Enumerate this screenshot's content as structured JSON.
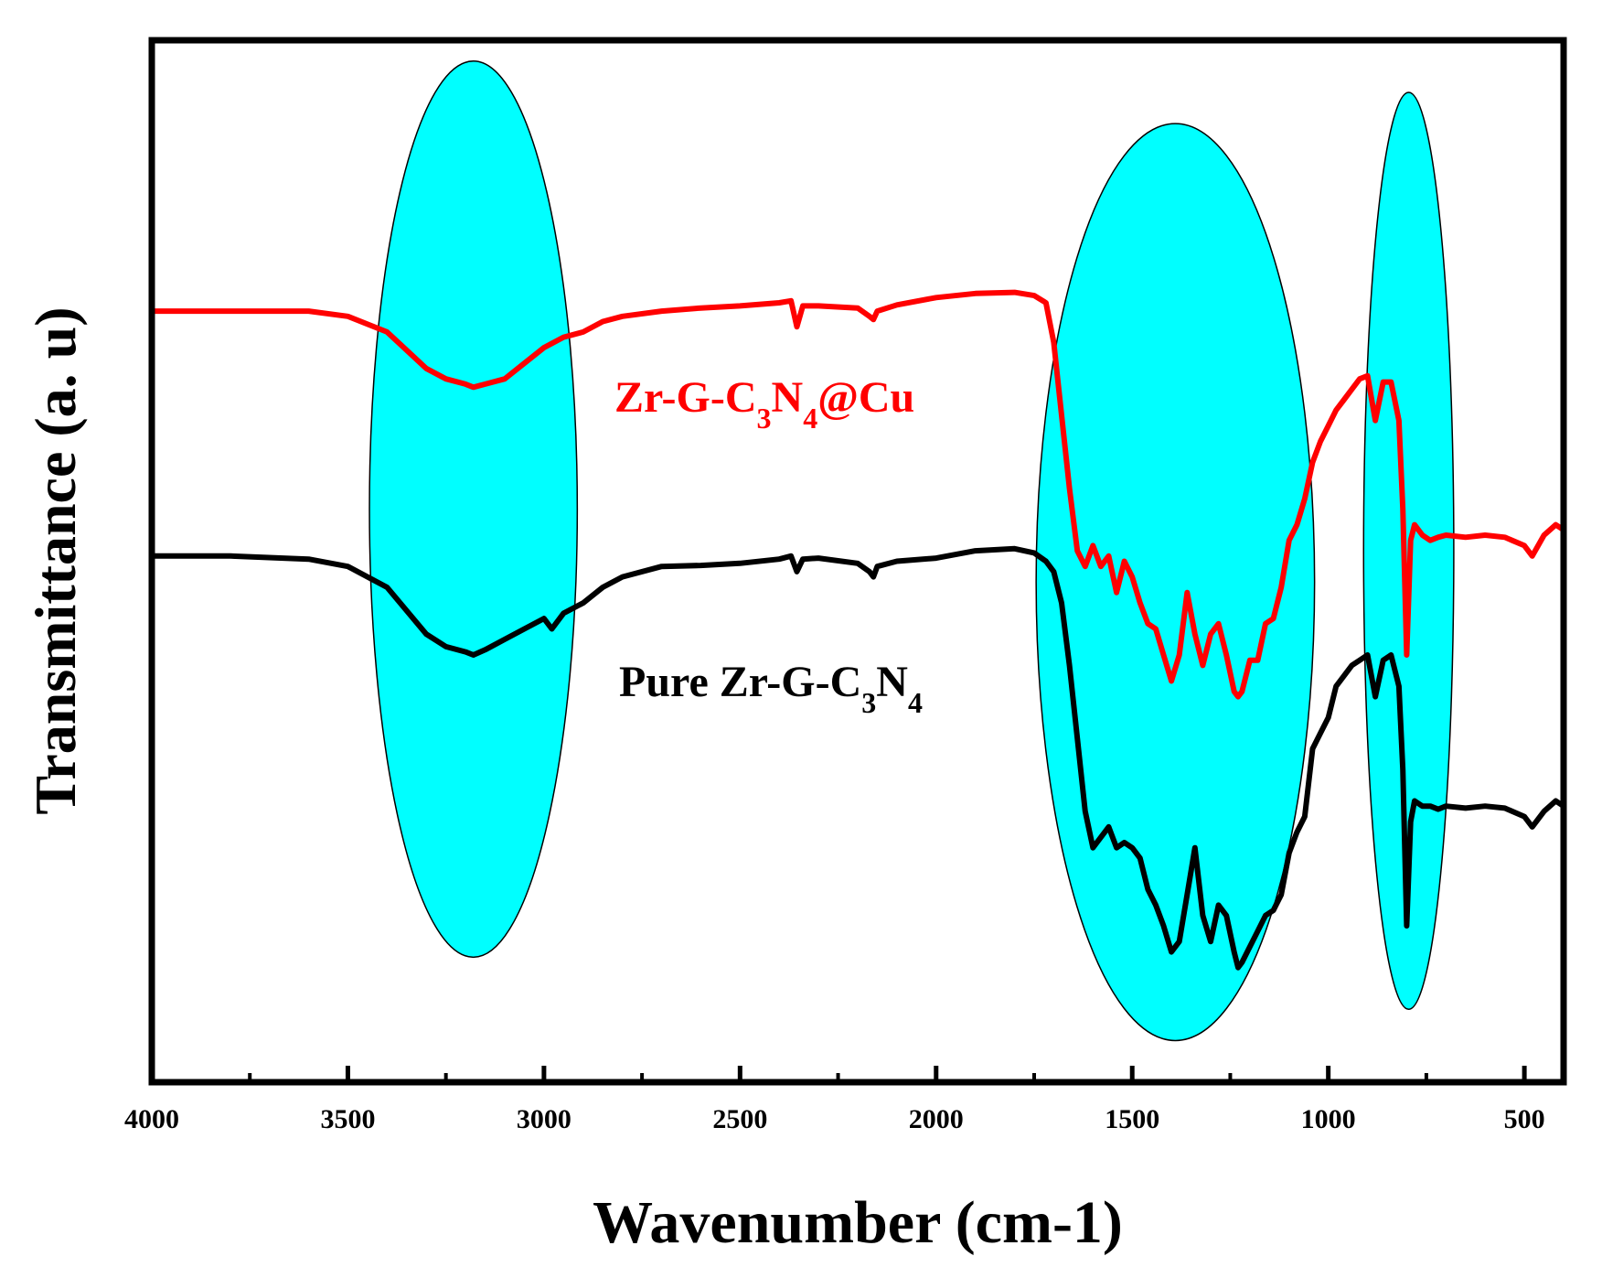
{
  "chart_data": {
    "type": "line",
    "title": "",
    "xlabel": "Wavenumber (cm-1)",
    "ylabel": "Transmittance (a. u)",
    "xlim": [
      4000,
      400
    ],
    "ylim": [
      0,
      100
    ],
    "x_ticks": [
      4000,
      3500,
      3000,
      2500,
      2000,
      1500,
      1000,
      500
    ],
    "grid": false,
    "legend": "inline",
    "highlight_regions": [
      {
        "center": 3180,
        "half_width": 265,
        "y_center": 55,
        "y_half": 43
      },
      {
        "center": 1390,
        "half_width": 355,
        "y_center": 48,
        "y_half": 44
      },
      {
        "center": 795,
        "half_width": 115,
        "y_center": 51,
        "y_half": 44
      }
    ],
    "series": [
      {
        "name": "Zr-G-C3N4@Cu",
        "label_main": "Zr-G-C",
        "label_sub1": "3",
        "label_mid": "N",
        "label_sub2": "4",
        "label_end": "@Cu",
        "color": "#ff0000",
        "x": [
          4000,
          3800,
          3600,
          3500,
          3400,
          3300,
          3250,
          3200,
          3180,
          3150,
          3100,
          3050,
          3000,
          2950,
          2900,
          2850,
          2800,
          2700,
          2600,
          2500,
          2400,
          2370,
          2355,
          2340,
          2300,
          2200,
          2170,
          2160,
          2150,
          2100,
          2000,
          1900,
          1800,
          1750,
          1720,
          1700,
          1680,
          1660,
          1640,
          1620,
          1600,
          1580,
          1560,
          1540,
          1520,
          1500,
          1480,
          1460,
          1440,
          1420,
          1400,
          1380,
          1360,
          1340,
          1320,
          1300,
          1280,
          1260,
          1240,
          1230,
          1220,
          1200,
          1180,
          1160,
          1140,
          1120,
          1100,
          1080,
          1060,
          1040,
          1020,
          1000,
          980,
          960,
          940,
          920,
          900,
          880,
          860,
          840,
          820,
          810,
          800,
          790,
          780,
          760,
          740,
          720,
          700,
          650,
          600,
          550,
          500,
          480,
          450,
          420,
          400
        ],
        "y": [
          74,
          74,
          74,
          73.5,
          72,
          68.5,
          67.5,
          67,
          66.7,
          67,
          67.5,
          69,
          70.5,
          71.5,
          72,
          73,
          73.5,
          74,
          74.3,
          74.5,
          74.8,
          75,
          72.5,
          74.5,
          74.5,
          74.3,
          73.5,
          73.2,
          74,
          74.6,
          75.3,
          75.7,
          75.8,
          75.5,
          74.8,
          71,
          64,
          57,
          51,
          49.5,
          51.5,
          49.5,
          50.5,
          47,
          50,
          48.5,
          46,
          44,
          43.5,
          41,
          38.5,
          41,
          47,
          43,
          40,
          43,
          44,
          41,
          37.5,
          37,
          37.5,
          40.5,
          40.5,
          44,
          44.5,
          47.5,
          52,
          53.5,
          56,
          59.5,
          61.5,
          63,
          64.5,
          65.5,
          66.5,
          67.5,
          67.8,
          63.5,
          67.2,
          67.2,
          63.5,
          55,
          41,
          52,
          53.5,
          52.5,
          52,
          52.3,
          52.5,
          52.3,
          52.5,
          52.3,
          51.5,
          50.5,
          52.5,
          53.5,
          53
        ]
      },
      {
        "name": "Pure Zr-G-C3N4",
        "label_main": "Pure Zr-G-C",
        "label_sub1": "3",
        "label_mid": "N",
        "label_sub2": "4",
        "label_end": "",
        "color": "#000000",
        "x": [
          4000,
          3800,
          3600,
          3500,
          3400,
          3300,
          3250,
          3200,
          3180,
          3150,
          3100,
          3050,
          3000,
          2980,
          2950,
          2900,
          2850,
          2800,
          2700,
          2600,
          2500,
          2400,
          2370,
          2355,
          2340,
          2300,
          2200,
          2170,
          2160,
          2150,
          2100,
          2000,
          1900,
          1800,
          1750,
          1720,
          1700,
          1680,
          1660,
          1640,
          1620,
          1600,
          1580,
          1560,
          1540,
          1520,
          1500,
          1480,
          1460,
          1440,
          1420,
          1400,
          1380,
          1360,
          1340,
          1320,
          1300,
          1280,
          1260,
          1240,
          1230,
          1220,
          1200,
          1180,
          1160,
          1140,
          1120,
          1100,
          1080,
          1060,
          1040,
          1020,
          1000,
          980,
          960,
          940,
          920,
          900,
          880,
          860,
          840,
          820,
          810,
          800,
          790,
          780,
          760,
          740,
          720,
          700,
          650,
          600,
          550,
          500,
          480,
          450,
          420,
          400
        ],
        "y": [
          50.5,
          50.5,
          50.2,
          49.5,
          47.5,
          43,
          41.8,
          41.3,
          41,
          41.5,
          42.5,
          43.5,
          44.5,
          43.5,
          45,
          46,
          47.5,
          48.5,
          49.5,
          49.6,
          49.8,
          50.2,
          50.5,
          49,
          50.2,
          50.3,
          49.8,
          49,
          48.5,
          49.5,
          50,
          50.3,
          51,
          51.2,
          50.8,
          50,
          49,
          46,
          40,
          33,
          26,
          22.5,
          23.5,
          24.5,
          22.5,
          23,
          22.5,
          21.5,
          18.5,
          17,
          15,
          12.5,
          13.5,
          18,
          22.5,
          16,
          13.5,
          17,
          16,
          12.5,
          11,
          11.5,
          13,
          14.5,
          16,
          16.5,
          18,
          22,
          24,
          25.5,
          32,
          33.5,
          35,
          38,
          39,
          40,
          40.5,
          41,
          37,
          40.5,
          41,
          38,
          30,
          15,
          25,
          27,
          26.5,
          26.5,
          26.2,
          26.5,
          26.3,
          26.5,
          26.3,
          25.5,
          24.5,
          26,
          27,
          26.5
        ]
      }
    ]
  }
}
